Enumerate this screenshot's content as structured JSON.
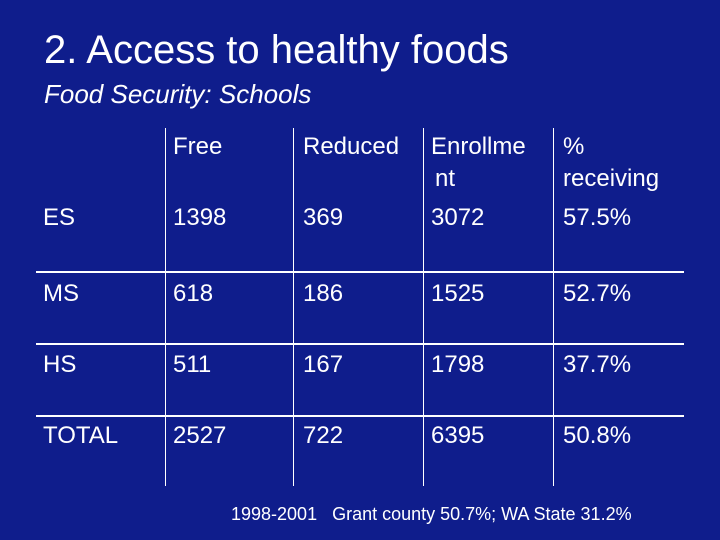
{
  "slide": {
    "title": "2. Access to healthy foods",
    "subtitle": "Food Security: Schools",
    "footer": "1998-2001   Grant county 50.7%; WA State 31.2%"
  },
  "table": {
    "headers": [
      "",
      "Free",
      "Reduced",
      "Enrollme\nnt",
      "%\nreceiving"
    ],
    "rows": [
      [
        "ES",
        "1398",
        "369",
        "3072",
        "57.5%"
      ],
      [
        "MS",
        "618",
        "186",
        "1525",
        "52.7%"
      ],
      [
        "HS",
        "511",
        "167",
        "1798",
        "37.7%"
      ],
      [
        "TOTAL",
        "2527",
        "722",
        "6395",
        "50.8%"
      ]
    ]
  }
}
